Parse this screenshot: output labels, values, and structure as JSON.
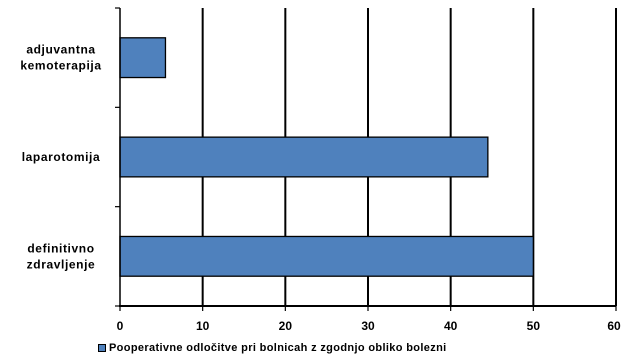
{
  "chart_data": {
    "type": "bar",
    "orientation": "horizontal",
    "categories": [
      [
        "adjuvantna",
        "kemoterapija"
      ],
      [
        "laparotomija"
      ],
      [
        "definitivno",
        "zdravljenje"
      ]
    ],
    "series": [
      {
        "name": "Pooperativne odločitve pri bolnicah z zgodnjo obliko bolezni",
        "values": [
          5.5,
          44.5,
          50
        ],
        "color": "#4f81bd"
      }
    ],
    "xlim": [
      0,
      60
    ],
    "xticks": [
      "0",
      "10",
      "20",
      "30",
      "40",
      "50",
      "60"
    ],
    "grid": "vertical",
    "legend_position": "bottom"
  }
}
